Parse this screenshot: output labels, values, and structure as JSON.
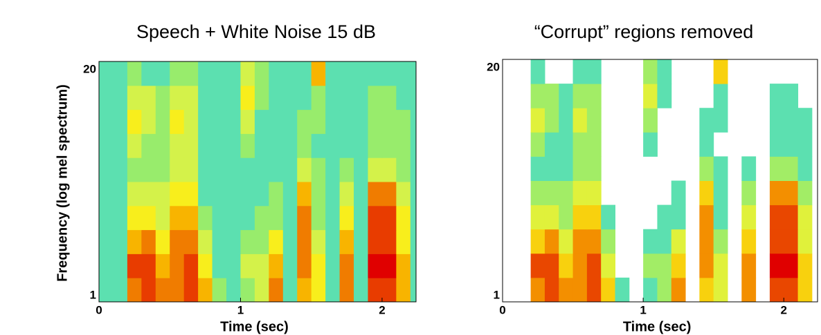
{
  "chart_data": [
    {
      "type": "heatmap",
      "title": "Speech + White Noise 15 dB",
      "xlabel": "Time (sec)",
      "ylabel": "Frequency (log mel spectrum)",
      "x_bins": [
        0,
        0.1,
        0.2,
        0.3,
        0.4,
        0.5,
        0.6,
        0.7,
        0.8,
        0.9,
        1.0,
        1.1,
        1.2,
        1.3,
        1.4,
        1.5,
        1.6,
        1.7,
        1.8,
        1.9,
        2.0,
        2.1,
        2.2,
        2.24
      ],
      "y_bins": [
        1,
        2.9,
        4.8,
        6.7,
        8.6,
        10.5,
        12.4,
        14.3,
        16.2,
        18.1,
        20
      ],
      "values": [
        [
          3,
          3,
          8,
          9,
          8,
          8,
          9,
          7,
          4,
          3,
          4,
          5,
          8,
          3,
          7,
          6,
          3,
          8,
          3,
          9,
          9,
          7,
          3
        ],
        [
          3,
          3,
          9,
          9,
          7,
          8,
          9,
          6,
          3,
          3,
          5,
          5,
          7,
          3,
          8,
          6,
          3,
          8,
          3,
          10,
          10,
          7,
          3
        ],
        [
          3,
          3,
          7,
          8,
          6,
          8,
          8,
          5,
          3,
          3,
          4,
          4,
          6,
          3,
          8,
          5,
          3,
          7,
          3,
          9,
          9,
          6,
          3
        ],
        [
          3,
          3,
          6,
          6,
          5,
          7,
          7,
          4,
          3,
          3,
          3,
          4,
          4,
          3,
          8,
          4,
          3,
          6,
          3,
          9,
          9,
          6,
          3
        ],
        [
          3,
          3,
          5,
          5,
          5,
          6,
          6,
          3,
          3,
          3,
          3,
          3,
          4,
          3,
          7,
          4,
          3,
          5,
          3,
          8,
          8,
          5,
          3
        ],
        [
          3,
          3,
          4,
          4,
          4,
          5,
          5,
          3,
          3,
          3,
          3,
          3,
          3,
          3,
          5,
          4,
          3,
          4,
          3,
          5,
          5,
          4,
          3
        ],
        [
          3,
          3,
          5,
          4,
          4,
          5,
          5,
          3,
          3,
          3,
          4,
          3,
          3,
          3,
          4,
          3,
          3,
          3,
          3,
          4,
          4,
          4,
          3
        ],
        [
          3,
          3,
          6,
          5,
          4,
          6,
          5,
          3,
          3,
          3,
          5,
          3,
          3,
          3,
          4,
          4,
          3,
          3,
          3,
          4,
          4,
          4,
          3
        ],
        [
          3,
          3,
          5,
          5,
          4,
          5,
          5,
          3,
          3,
          3,
          6,
          4,
          3,
          3,
          3,
          4,
          3,
          3,
          3,
          4,
          4,
          3,
          3
        ],
        [
          3,
          3,
          4,
          3,
          3,
          4,
          4,
          3,
          3,
          3,
          5,
          4,
          3,
          3,
          3,
          7,
          3,
          3,
          3,
          3,
          3,
          3,
          3
        ]
      ],
      "xlim": [
        0,
        2.24
      ],
      "ylim": [
        1,
        20
      ],
      "xticks": [
        0,
        1,
        2
      ],
      "yticks": [
        1,
        20
      ],
      "colormap": [
        "#5ce0b0",
        "#98ec6c",
        "#d4f24a",
        "#f8ee1c",
        "#f8b400",
        "#f07c00",
        "#e83c00",
        "#e00000"
      ]
    },
    {
      "type": "heatmap",
      "title": "“Corrupt” regions removed",
      "xlabel": "Time (sec)",
      "x_bins": [
        0,
        0.1,
        0.2,
        0.3,
        0.4,
        0.5,
        0.6,
        0.7,
        0.8,
        0.9,
        1.0,
        1.1,
        1.2,
        1.3,
        1.4,
        1.5,
        1.6,
        1.7,
        1.8,
        1.9,
        2.0,
        2.1,
        2.2,
        2.24
      ],
      "y_bins": [
        1,
        2.9,
        4.8,
        6.7,
        8.6,
        10.5,
        12.4,
        14.3,
        16.2,
        18.1,
        20
      ],
      "values": [
        [
          null,
          null,
          8,
          9,
          8,
          8,
          9,
          7,
          4,
          null,
          4,
          5,
          8,
          null,
          7,
          6,
          null,
          8,
          null,
          9,
          9,
          7,
          null
        ],
        [
          null,
          null,
          9,
          9,
          7,
          8,
          9,
          6,
          null,
          null,
          5,
          5,
          7,
          null,
          8,
          6,
          null,
          8,
          null,
          10,
          10,
          7,
          null
        ],
        [
          null,
          null,
          7,
          8,
          6,
          8,
          8,
          5,
          null,
          null,
          4,
          4,
          6,
          null,
          8,
          5,
          null,
          7,
          null,
          9,
          9,
          6,
          null
        ],
        [
          null,
          null,
          6,
          6,
          5,
          7,
          7,
          4,
          null,
          null,
          null,
          4,
          4,
          null,
          8,
          4,
          null,
          6,
          null,
          9,
          9,
          6,
          null
        ],
        [
          null,
          null,
          5,
          5,
          5,
          6,
          6,
          null,
          null,
          null,
          null,
          null,
          4,
          null,
          7,
          4,
          null,
          5,
          null,
          8,
          8,
          5,
          null
        ],
        [
          null,
          null,
          4,
          4,
          4,
          5,
          5,
          null,
          null,
          null,
          null,
          null,
          null,
          null,
          5,
          4,
          null,
          4,
          null,
          5,
          5,
          4,
          null
        ],
        [
          null,
          null,
          5,
          4,
          4,
          5,
          5,
          null,
          null,
          null,
          4,
          null,
          null,
          null,
          4,
          null,
          null,
          null,
          null,
          4,
          4,
          4,
          null
        ],
        [
          null,
          null,
          6,
          5,
          4,
          6,
          5,
          null,
          null,
          null,
          5,
          null,
          null,
          null,
          4,
          4,
          null,
          null,
          null,
          4,
          4,
          4,
          null
        ],
        [
          null,
          null,
          5,
          5,
          4,
          5,
          5,
          null,
          null,
          null,
          6,
          4,
          null,
          null,
          null,
          4,
          null,
          null,
          null,
          4,
          4,
          null,
          null
        ],
        [
          null,
          null,
          4,
          null,
          null,
          4,
          4,
          null,
          null,
          null,
          5,
          4,
          null,
          null,
          null,
          7,
          null,
          null,
          null,
          null,
          null,
          null,
          null
        ]
      ],
      "xlim": [
        0,
        2.24
      ],
      "ylim": [
        1,
        20
      ],
      "xticks": [
        0,
        1,
        2
      ],
      "yticks": [
        1,
        20
      ],
      "colormap": [
        "#5ce0b0",
        "#98ec6c",
        "#d4f24a",
        "#f8ee1c",
        "#f8b400",
        "#f07c00",
        "#e83c00",
        "#e00000"
      ]
    }
  ]
}
